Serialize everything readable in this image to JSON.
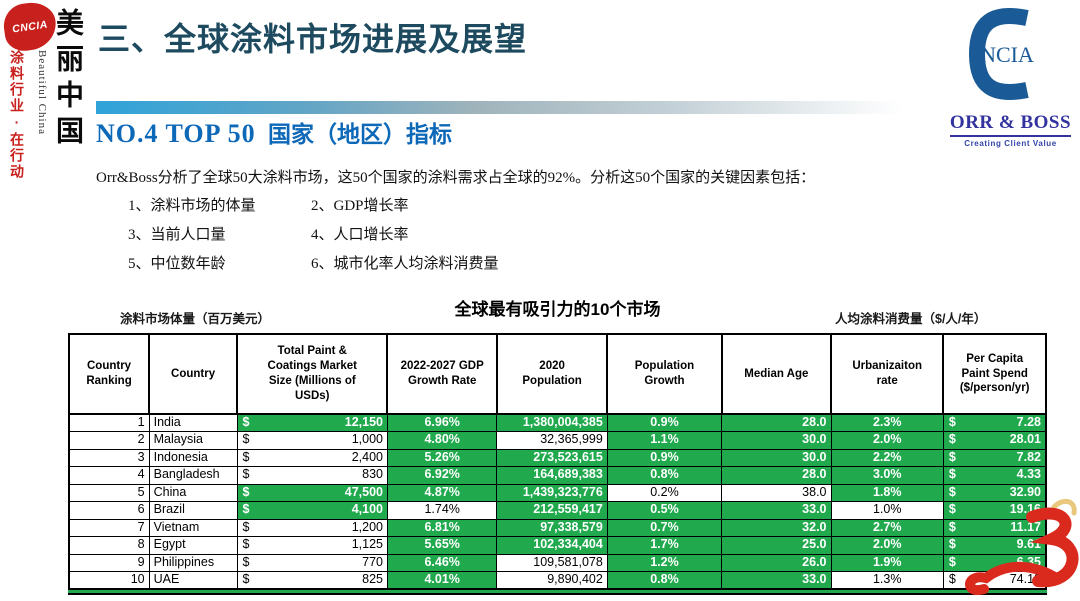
{
  "colors": {
    "accent_green": "#21A94E",
    "title_teal": "#1D4A5F",
    "heading_blue": "#0D68B8",
    "logo_blue": "#1A5A96",
    "orrboss_blue": "#3333A0",
    "brand_red": "#C8201D"
  },
  "sidebar": {
    "badge": "CNCIA",
    "slogan_cn": "美丽中国",
    "slogan_en": "Beautiful China",
    "slogan_red": "涂料行业·在行动"
  },
  "header": {
    "title": "三、全球涂料市场进展及展望",
    "section_no": "NO.4   TOP 50",
    "section_cn": "国家（地区）指标",
    "logo_c_text": "NCIA",
    "orrboss": "ORR & BOSS",
    "orrboss_tagline": "Creating Client Value"
  },
  "intro": {
    "paragraph": "Orr&Boss分析了全球50大涂料市场，这50个国家的涂料需求占全球的92%。分析这50个国家的关键因素包括：",
    "factors": [
      "1、涂料市场的体量",
      "2、GDP增长率",
      "3、当前人口量",
      "4、人口增长率",
      "5、中位数年龄",
      "6、城市化率人均涂料消费量"
    ]
  },
  "table_section": {
    "left_note": "涂料市场体量（百万美元）",
    "title": "全球最有吸引力的10个市场",
    "right_note": "人均涂料消费量（$/人/年）"
  },
  "chart_data": {
    "type": "table",
    "title": "全球最有吸引力的10个市场",
    "headers": [
      "Country\nRanking",
      "Country",
      "Total Paint &\nCoatings Market\nSize (Millions of\nUSDs)",
      "2022-2027 GDP\nGrowth Rate",
      "2020\nPopulation",
      "Population\nGrowth",
      "Median Age",
      "Urbanizaiton\nrate",
      "Per Capita\nPaint Spend\n($/person/yr)"
    ],
    "col_styles": [
      "rank",
      "country",
      "money",
      "center",
      "right",
      "center",
      "right",
      "center",
      "money"
    ],
    "highlight_legend": "green cell = favorable indicator",
    "rows": [
      {
        "cells": [
          "1",
          "India",
          "12,150",
          "6.96%",
          "1,380,004,385",
          "0.9%",
          "28.0",
          "2.3%",
          "7.28"
        ],
        "hl": [
          0,
          0,
          1,
          1,
          1,
          1,
          1,
          1,
          1
        ]
      },
      {
        "cells": [
          "2",
          "Malaysia",
          "1,000",
          "4.80%",
          "32,365,999",
          "1.1%",
          "30.0",
          "2.0%",
          "28.01"
        ],
        "hl": [
          0,
          0,
          0,
          1,
          0,
          1,
          1,
          1,
          1
        ]
      },
      {
        "cells": [
          "3",
          "Indonesia",
          "2,400",
          "5.26%",
          "273,523,615",
          "0.9%",
          "30.0",
          "2.2%",
          "7.82"
        ],
        "hl": [
          0,
          0,
          0,
          1,
          1,
          1,
          1,
          1,
          1
        ]
      },
      {
        "cells": [
          "4",
          "Bangladesh",
          "830",
          "6.92%",
          "164,689,383",
          "0.8%",
          "28.0",
          "3.0%",
          "4.33"
        ],
        "hl": [
          0,
          0,
          0,
          1,
          1,
          1,
          1,
          1,
          1
        ]
      },
      {
        "cells": [
          "5",
          "China",
          "47,500",
          "4.87%",
          "1,439,323,776",
          "0.2%",
          "38.0",
          "1.8%",
          "32.90"
        ],
        "hl": [
          0,
          0,
          1,
          1,
          1,
          0,
          0,
          1,
          1
        ]
      },
      {
        "cells": [
          "6",
          "Brazil",
          "4,100",
          "1.74%",
          "212,559,417",
          "0.5%",
          "33.0",
          "1.0%",
          "19.16"
        ],
        "hl": [
          0,
          0,
          1,
          0,
          1,
          1,
          1,
          0,
          1
        ]
      },
      {
        "cells": [
          "7",
          "Vietnam",
          "1,200",
          "6.81%",
          "97,338,579",
          "0.7%",
          "32.0",
          "2.7%",
          "11.17"
        ],
        "hl": [
          0,
          0,
          0,
          1,
          1,
          1,
          1,
          1,
          1
        ]
      },
      {
        "cells": [
          "8",
          "Egypt",
          "1,125",
          "5.65%",
          "102,334,404",
          "1.7%",
          "25.0",
          "2.0%",
          "9.61"
        ],
        "hl": [
          0,
          0,
          0,
          1,
          1,
          1,
          1,
          1,
          1
        ]
      },
      {
        "cells": [
          "9",
          "Philippines",
          "770",
          "6.46%",
          "109,581,078",
          "1.2%",
          "26.0",
          "1.9%",
          "6.35"
        ],
        "hl": [
          0,
          0,
          0,
          1,
          0,
          1,
          1,
          1,
          1
        ]
      },
      {
        "cells": [
          "10",
          "UAE",
          "825",
          "4.01%",
          "9,890,402",
          "0.8%",
          "33.0",
          "1.3%",
          "74.12"
        ],
        "hl": [
          0,
          0,
          0,
          1,
          0,
          1,
          1,
          0,
          0
        ]
      }
    ]
  }
}
